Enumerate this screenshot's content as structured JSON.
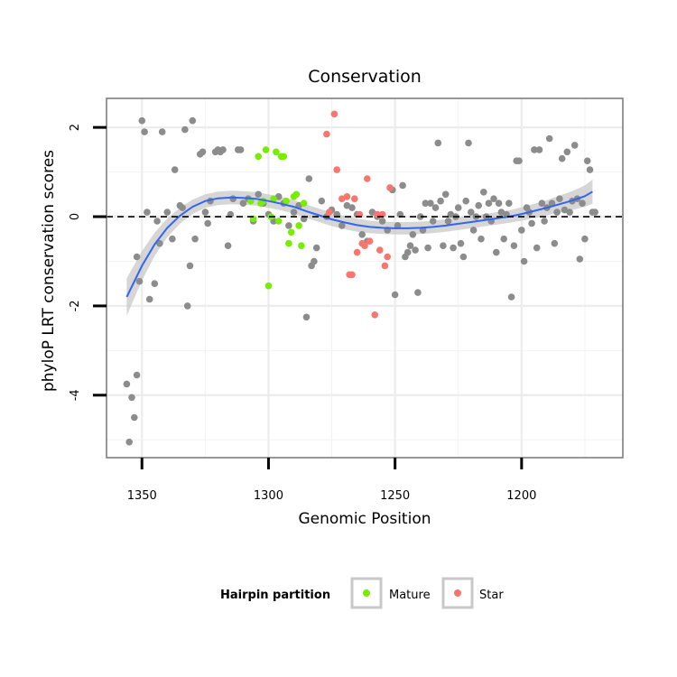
{
  "chart_data": {
    "type": "scatter",
    "title": "Conservation",
    "xlabel": "Genomic Position",
    "ylabel": "phyloP LRT conservation scores",
    "x_reversed": true,
    "xlim": [
      1364,
      1160
    ],
    "ylim": [
      -5.4,
      2.65
    ],
    "x_ticks": [
      1350,
      1300,
      1250,
      1200
    ],
    "y_ticks": [
      2,
      0,
      -2,
      -4
    ],
    "reference_line": {
      "y": 0,
      "style": "dashed"
    },
    "grid": true,
    "legend": {
      "title": "Hairpin partition",
      "placement": "bottom",
      "entries": [
        {
          "label": "Mature",
          "color": "#77ee00"
        },
        {
          "label": "Star",
          "color": "#f8766d"
        }
      ]
    },
    "colors": {
      "other": "#8c8c8c",
      "Mature": "#77ee00",
      "Star": "#f8766d",
      "smooth": "#3366ee",
      "band": "#c8c8c8"
    },
    "smooth": {
      "x": [
        1356,
        1350,
        1345,
        1340,
        1335,
        1330,
        1325,
        1320,
        1315,
        1310,
        1305,
        1300,
        1295,
        1290,
        1285,
        1280,
        1275,
        1270,
        1265,
        1260,
        1255,
        1250,
        1245,
        1240,
        1235,
        1230,
        1225,
        1220,
        1215,
        1210,
        1205,
        1200,
        1195,
        1190,
        1185,
        1180,
        1175,
        1172
      ],
      "y": [
        -1.8,
        -1.1,
        -0.62,
        -0.25,
        0.02,
        0.22,
        0.35,
        0.41,
        0.43,
        0.42,
        0.4,
        0.35,
        0.29,
        0.22,
        0.12,
        0.03,
        -0.06,
        -0.13,
        -0.19,
        -0.23,
        -0.25,
        -0.26,
        -0.26,
        -0.25,
        -0.23,
        -0.2,
        -0.16,
        -0.12,
        -0.08,
        -0.04,
        0.0,
        0.06,
        0.13,
        0.2,
        0.28,
        0.36,
        0.46,
        0.56
      ],
      "se": [
        0.42,
        0.33,
        0.26,
        0.21,
        0.18,
        0.16,
        0.15,
        0.15,
        0.15,
        0.15,
        0.15,
        0.15,
        0.15,
        0.15,
        0.15,
        0.15,
        0.15,
        0.15,
        0.15,
        0.14,
        0.14,
        0.14,
        0.14,
        0.14,
        0.14,
        0.14,
        0.14,
        0.14,
        0.14,
        0.14,
        0.14,
        0.15,
        0.16,
        0.17,
        0.19,
        0.21,
        0.24,
        0.27
      ]
    },
    "series": [
      {
        "group": "other",
        "points": [
          [
            1356,
            -3.75
          ],
          [
            1355,
            -5.05
          ],
          [
            1354,
            -4.05
          ],
          [
            1353,
            -4.5
          ],
          [
            1352,
            -3.55
          ],
          [
            1350,
            2.15
          ],
          [
            1349,
            1.9
          ],
          [
            1347,
            -1.85
          ],
          [
            1348,
            0.1
          ],
          [
            1351,
            -1.45
          ],
          [
            1352,
            -0.9
          ],
          [
            1345,
            -1.5
          ],
          [
            1343,
            -0.6
          ],
          [
            1342,
            1.9
          ],
          [
            1338,
            -0.5
          ],
          [
            1337,
            1.05
          ],
          [
            1344,
            -0.1
          ],
          [
            1340,
            0.1
          ],
          [
            1335,
            0.25
          ],
          [
            1334,
            0.2
          ],
          [
            1333,
            1.95
          ],
          [
            1332,
            -2.0
          ],
          [
            1331,
            -1.1
          ],
          [
            1330,
            2.15
          ],
          [
            1329,
            -0.5
          ],
          [
            1327,
            1.4
          ],
          [
            1326,
            1.45
          ],
          [
            1325,
            0.1
          ],
          [
            1324,
            -0.15
          ],
          [
            1323,
            0.35
          ],
          [
            1321,
            1.45
          ],
          [
            1320,
            1.5
          ],
          [
            1319,
            1.45
          ],
          [
            1318,
            1.5
          ],
          [
            1316,
            -0.65
          ],
          [
            1315,
            0.05
          ],
          [
            1314,
            0.4
          ],
          [
            1312,
            1.5
          ],
          [
            1311,
            1.5
          ],
          [
            1310,
            0.3
          ],
          [
            1308,
            0.4
          ],
          [
            1306,
            -0.1
          ],
          [
            1304,
            0.5
          ],
          [
            1302,
            0.3
          ],
          [
            1300,
            0.05
          ],
          [
            1298,
            -0.1
          ],
          [
            1296,
            0.45
          ],
          [
            1294,
            0.3
          ],
          [
            1292,
            -0.2
          ],
          [
            1290,
            0.1
          ],
          [
            1288,
            0.25
          ],
          [
            1286,
            -0.05
          ],
          [
            1285,
            -2.25
          ],
          [
            1284,
            0.85
          ],
          [
            1283,
            -1.1
          ],
          [
            1282,
            -1.0
          ],
          [
            1281,
            -0.7
          ],
          [
            1279,
            0.35
          ],
          [
            1277,
            0.0
          ],
          [
            1275,
            0.15
          ],
          [
            1273,
            0.05
          ],
          [
            1271,
            -0.2
          ],
          [
            1269,
            0.25
          ],
          [
            1267,
            0.2
          ],
          [
            1265,
            0.05
          ],
          [
            1263,
            -0.4
          ],
          [
            1261,
            -0.55
          ],
          [
            1259,
            0.1
          ],
          [
            1257,
            0.0
          ],
          [
            1255,
            -0.1
          ],
          [
            1253,
            -0.3
          ],
          [
            1251,
            0.6
          ],
          [
            1250,
            -1.75
          ],
          [
            1249,
            -0.2
          ],
          [
            1248,
            0.05
          ],
          [
            1247,
            0.7
          ],
          [
            1246,
            -0.9
          ],
          [
            1245,
            -0.8
          ],
          [
            1244,
            -0.65
          ],
          [
            1243,
            -0.4
          ],
          [
            1242,
            -0.75
          ],
          [
            1241,
            -1.7
          ],
          [
            1240,
            0.0
          ],
          [
            1239,
            -0.3
          ],
          [
            1238,
            0.3
          ],
          [
            1237,
            -0.7
          ],
          [
            1236,
            0.3
          ],
          [
            1235,
            -0.1
          ],
          [
            1234,
            0.2
          ],
          [
            1233,
            1.65
          ],
          [
            1232,
            0.35
          ],
          [
            1231,
            -0.65
          ],
          [
            1230,
            0.5
          ],
          [
            1229,
            -0.1
          ],
          [
            1228,
            0.05
          ],
          [
            1227,
            -0.7
          ],
          [
            1226,
            0.0
          ],
          [
            1225,
            0.2
          ],
          [
            1224,
            -0.6
          ],
          [
            1223,
            -0.9
          ],
          [
            1222,
            0.35
          ],
          [
            1221,
            1.65
          ],
          [
            1220,
            0.1
          ],
          [
            1219,
            -0.3
          ],
          [
            1218,
            0.0
          ],
          [
            1217,
            0.25
          ],
          [
            1216,
            -0.5
          ],
          [
            1215,
            0.55
          ],
          [
            1214,
            0.0
          ],
          [
            1213,
            0.3
          ],
          [
            1212,
            -0.1
          ],
          [
            1211,
            0.4
          ],
          [
            1210,
            -0.8
          ],
          [
            1209,
            0.3
          ],
          [
            1208,
            0.1
          ],
          [
            1207,
            -0.5
          ],
          [
            1206,
            0.05
          ],
          [
            1205,
            0.3
          ],
          [
            1204,
            -1.8
          ],
          [
            1203,
            -0.65
          ],
          [
            1202,
            1.25
          ],
          [
            1201,
            1.25
          ],
          [
            1200,
            -0.3
          ],
          [
            1199,
            -1.0
          ],
          [
            1198,
            0.2
          ],
          [
            1197,
            0.1
          ],
          [
            1196,
            -0.15
          ],
          [
            1195,
            1.5
          ],
          [
            1194,
            -0.7
          ],
          [
            1193,
            1.5
          ],
          [
            1192,
            0.3
          ],
          [
            1191,
            -0.1
          ],
          [
            1190,
            0.2
          ],
          [
            1189,
            1.75
          ],
          [
            1188,
            0.3
          ],
          [
            1187,
            -0.6
          ],
          [
            1186,
            0.1
          ],
          [
            1185,
            0.4
          ],
          [
            1184,
            1.3
          ],
          [
            1183,
            0.15
          ],
          [
            1182,
            1.45
          ],
          [
            1181,
            0.1
          ],
          [
            1180,
            0.35
          ],
          [
            1179,
            1.6
          ],
          [
            1178,
            0.4
          ],
          [
            1177,
            -0.95
          ],
          [
            1176,
            0.3
          ],
          [
            1175,
            -0.5
          ],
          [
            1174,
            1.25
          ],
          [
            1173,
            1.05
          ],
          [
            1172,
            0.1
          ],
          [
            1171,
            0.1
          ]
        ]
      },
      {
        "group": "Mature",
        "name": "Mature",
        "points": [
          [
            1307,
            0.35
          ],
          [
            1306,
            -0.05
          ],
          [
            1304,
            1.35
          ],
          [
            1303,
            0.3
          ],
          [
            1302,
            0.35
          ],
          [
            1301,
            1.5
          ],
          [
            1300,
            -1.55
          ],
          [
            1299,
            0.0
          ],
          [
            1298,
            0.4
          ],
          [
            1297,
            1.45
          ],
          [
            1296,
            -0.1
          ],
          [
            1295,
            1.35
          ],
          [
            1294,
            1.35
          ],
          [
            1293,
            0.35
          ],
          [
            1292,
            -0.6
          ],
          [
            1291,
            -0.35
          ],
          [
            1290,
            0.45
          ],
          [
            1289,
            0.5
          ],
          [
            1288,
            -0.2
          ],
          [
            1287,
            -0.65
          ],
          [
            1286,
            0.3
          ]
        ]
      },
      {
        "group": "Star",
        "name": "Star",
        "points": [
          [
            1277,
            1.85
          ],
          [
            1276,
            0.1
          ],
          [
            1274,
            2.3
          ],
          [
            1273,
            1.05
          ],
          [
            1271,
            0.4
          ],
          [
            1269,
            0.45
          ],
          [
            1268,
            -1.3
          ],
          [
            1267,
            -1.3
          ],
          [
            1266,
            0.4
          ],
          [
            1265,
            -0.8
          ],
          [
            1264,
            0.05
          ],
          [
            1263,
            -0.6
          ],
          [
            1262,
            -0.65
          ],
          [
            1261,
            0.85
          ],
          [
            1260,
            -0.55
          ],
          [
            1258,
            -2.2
          ],
          [
            1257,
            0.05
          ],
          [
            1256,
            -0.75
          ],
          [
            1255,
            0.05
          ],
          [
            1254,
            -1.1
          ],
          [
            1253,
            -0.9
          ],
          [
            1252,
            0.65
          ]
        ]
      }
    ]
  }
}
